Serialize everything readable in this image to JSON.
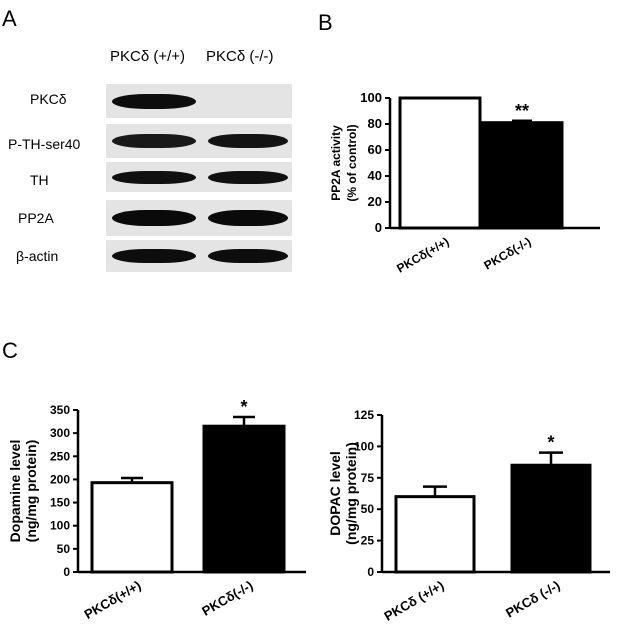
{
  "panels": {
    "a": "A",
    "b": "B",
    "c": "C"
  },
  "blot": {
    "lanes": [
      "PKCδ (+/+)",
      "PKCδ (-/-)"
    ],
    "rows": [
      {
        "label": "PKCδ",
        "bands": [
          0.95,
          0.0
        ]
      },
      {
        "label": "P-TH-ser40",
        "bands": [
          0.75,
          0.85
        ]
      },
      {
        "label": "TH",
        "bands": [
          0.9,
          0.9
        ]
      },
      {
        "label": "PP2A",
        "bands": [
          1.0,
          1.0
        ]
      },
      {
        "label": "β-actin",
        "bands": [
          0.95,
          0.95
        ]
      }
    ]
  },
  "chart_data": [
    {
      "type": "bar",
      "categories": [
        "PKCδ(+/+)",
        "PKCδ(-/-)"
      ],
      "values": [
        100,
        81
      ],
      "errors": [
        0,
        1.5
      ],
      "significance": [
        "",
        "**"
      ],
      "fills": [
        "#ffffff",
        "#000000"
      ],
      "ylabel": [
        "PP2A activity",
        "(% of control)"
      ],
      "ylim": [
        0,
        100
      ],
      "yticks": [
        0,
        20,
        40,
        60,
        80,
        100
      ]
    },
    {
      "type": "bar",
      "categories": [
        "PKCδ(+/+)",
        "PKCδ(-/-)"
      ],
      "values": [
        193,
        315
      ],
      "errors": [
        10,
        20
      ],
      "significance": [
        "",
        "*"
      ],
      "fills": [
        "#ffffff",
        "#000000"
      ],
      "ylabel": [
        "Dopamine level",
        "(ng/mg protein)"
      ],
      "ylim": [
        0,
        350
      ],
      "yticks": [
        0,
        50,
        100,
        150,
        200,
        250,
        300,
        350
      ]
    },
    {
      "type": "bar",
      "categories": [
        "PKCδ (+/+)",
        "PKCδ (-/-)"
      ],
      "values": [
        60,
        85
      ],
      "errors": [
        8,
        10
      ],
      "significance": [
        "",
        "*"
      ],
      "fills": [
        "#ffffff",
        "#000000"
      ],
      "ylabel": [
        "DOPAC level",
        "(ng/mg protein)"
      ],
      "ylim": [
        0,
        125
      ],
      "yticks": [
        0,
        25,
        50,
        75,
        100,
        125
      ]
    }
  ]
}
